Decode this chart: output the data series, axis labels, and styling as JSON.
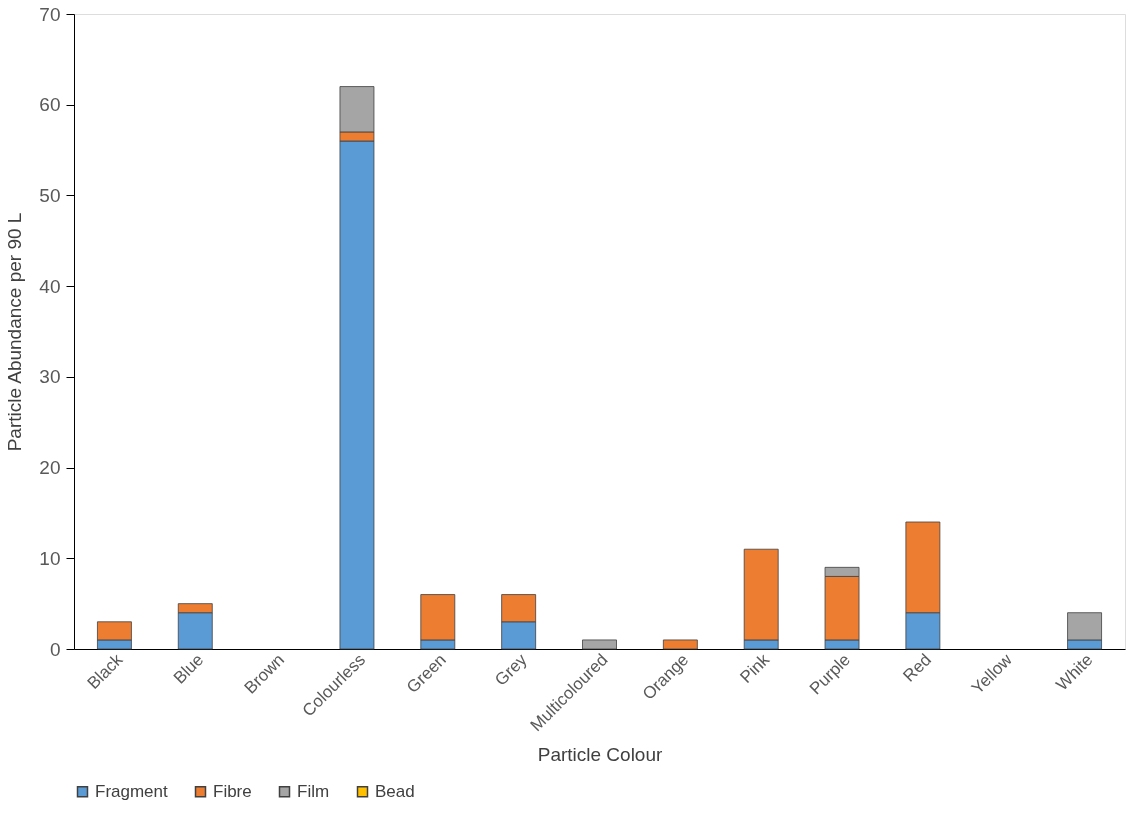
{
  "chart_data": {
    "type": "bar",
    "stacked": true,
    "xlabel": "Particle Colour",
    "ylabel": "Particle Abundance per 90 L",
    "categories": [
      "Black",
      "Blue",
      "Brown",
      "Colourless",
      "Green",
      "Grey",
      "Multicoloured",
      "Orange",
      "Pink",
      "Purple",
      "Red",
      "Yellow",
      "White"
    ],
    "series": [
      {
        "name": "Fragment",
        "color": "#5b9bd5",
        "values": [
          1,
          4,
          null,
          56,
          1,
          3,
          null,
          null,
          1,
          1,
          4,
          null,
          1
        ]
      },
      {
        "name": "Fibre",
        "color": "#ed7d31",
        "values": [
          2,
          1,
          null,
          1,
          5,
          3,
          null,
          1,
          10,
          7,
          10,
          null,
          null
        ]
      },
      {
        "name": "Film",
        "color": "#a5a5a5",
        "values": [
          null,
          null,
          null,
          5,
          null,
          null,
          1,
          null,
          null,
          1,
          null,
          null,
          3
        ]
      },
      {
        "name": "Bead",
        "color": "#ffc000",
        "values": [
          null,
          null,
          null,
          null,
          null,
          null,
          null,
          null,
          null,
          null,
          null,
          null,
          null
        ]
      }
    ],
    "ylim": [
      0,
      70
    ],
    "yticks": [
      0,
      10,
      20,
      30,
      40,
      50,
      60,
      70
    ],
    "grid": false,
    "legend": "bottom"
  }
}
